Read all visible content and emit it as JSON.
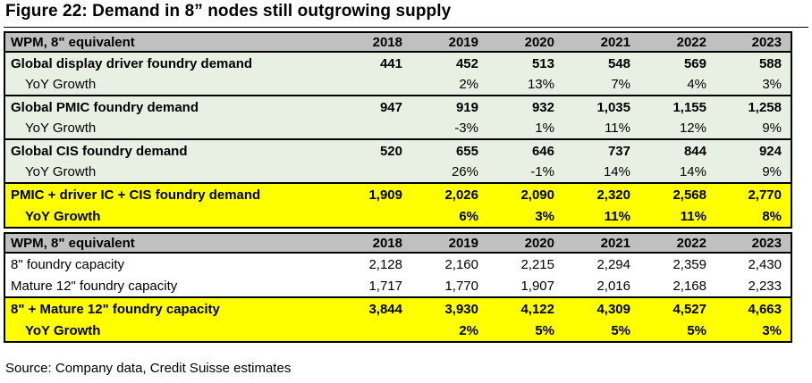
{
  "title": "Figure 22: Demand in 8” nodes still outgrowing supply",
  "years": [
    "2018",
    "2019",
    "2020",
    "2021",
    "2022",
    "2023"
  ],
  "demand_table": {
    "header_label": "WPM, 8\" equivalent",
    "rows": [
      {
        "label": "Global display driver foundry demand",
        "values": [
          "441",
          "452",
          "513",
          "548",
          "569",
          "588"
        ]
      },
      {
        "label": "YoY Growth",
        "values": [
          "",
          "2%",
          "13%",
          "7%",
          "4%",
          "3%"
        ]
      },
      {
        "label": "Global PMIC foundry demand",
        "values": [
          "947",
          "919",
          "932",
          "1,035",
          "1,155",
          "1,258"
        ]
      },
      {
        "label": "YoY Growth",
        "values": [
          "",
          "-3%",
          "1%",
          "11%",
          "12%",
          "9%"
        ]
      },
      {
        "label": "Global CIS foundry demand",
        "values": [
          "520",
          "655",
          "646",
          "737",
          "844",
          "924"
        ]
      },
      {
        "label": "YoY Growth",
        "values": [
          "",
          "26%",
          "-1%",
          "14%",
          "14%",
          "9%"
        ]
      },
      {
        "label": "PMIC + driver IC + CIS foundry demand",
        "values": [
          "1,909",
          "2,026",
          "2,090",
          "2,320",
          "2,568",
          "2,770"
        ]
      },
      {
        "label": "YoY Growth",
        "values": [
          "",
          "6%",
          "3%",
          "11%",
          "11%",
          "8%"
        ]
      }
    ]
  },
  "capacity_table": {
    "header_label": "WPM, 8\" equivalent",
    "rows": [
      {
        "label": "8\" foundry capacity",
        "values": [
          "2,128",
          "2,160",
          "2,215",
          "2,294",
          "2,359",
          "2,430"
        ]
      },
      {
        "label": "Mature 12\" foundry capacity",
        "values": [
          "1,717",
          "1,770",
          "1,907",
          "2,016",
          "2,168",
          "2,233"
        ]
      },
      {
        "label": "8\" + Mature 12\" foundry capacity",
        "values": [
          "3,844",
          "3,930",
          "4,122",
          "4,309",
          "4,527",
          "4,663"
        ]
      },
      {
        "label": "YoY Growth",
        "values": [
          "",
          "2%",
          "5%",
          "5%",
          "5%",
          "3%"
        ]
      }
    ]
  },
  "source": "Source: Company data, Credit Suisse estimates",
  "colors": {
    "header_bg": "#c0c0c0",
    "demand_bg": "#e8f0e3",
    "highlight_bg": "#ffff00"
  }
}
